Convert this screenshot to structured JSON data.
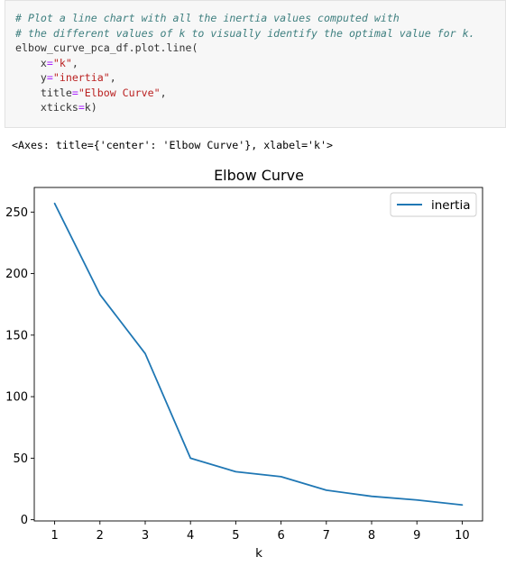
{
  "code_cell": {
    "comment_1": "# Plot a line chart with all the inertia values computed with",
    "comment_2": "# the different values of k to visually identify the optimal value for k.",
    "call": "elbow_curve_pca_df.plot.line(",
    "arg_x_name": "x",
    "arg_x_value": "\"k\"",
    "arg_y_name": "y",
    "arg_y_value": "\"inertia\"",
    "arg_title_name": "title",
    "arg_title_value": "\"Elbow Curve\"",
    "arg_xticks_name": "xticks",
    "arg_xticks_value": "k",
    "equals": "=",
    "comma": ",",
    "close_paren": ")"
  },
  "output_text": "<Axes: title={'center': 'Elbow Curve'}, xlabel='k'>",
  "chart_data": {
    "type": "line",
    "title": "Elbow Curve",
    "xlabel": "k",
    "ylabel": "",
    "x": [
      1,
      2,
      3,
      4,
      5,
      6,
      7,
      8,
      9,
      10
    ],
    "series": [
      {
        "name": "inertia",
        "color": "#1f77b4",
        "values": [
          257,
          183,
          135,
          50,
          39,
          35,
          24,
          19,
          16,
          12
        ]
      }
    ],
    "xticks": [
      1,
      2,
      3,
      4,
      5,
      6,
      7,
      8,
      9,
      10
    ],
    "yticks": [
      0,
      50,
      100,
      150,
      200,
      250
    ],
    "xlim": [
      0.55,
      10.45
    ],
    "ylim": [
      -1,
      270
    ],
    "legend_position": "top-right",
    "grid": false
  }
}
